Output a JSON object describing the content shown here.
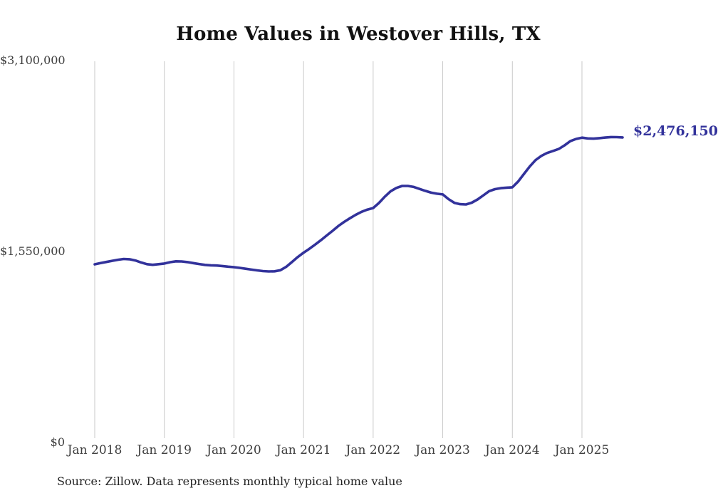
{
  "page": {
    "title": "Home Values in Westover Hills, TX",
    "source_note": "Source: Zillow. Data represents monthly typical home value"
  },
  "chart_data": {
    "type": "line",
    "title": "Home Values in Westover Hills, TX",
    "xlabel": "",
    "ylabel": "",
    "ylim": [
      0,
      3100000
    ],
    "grid": "vertical-yearly",
    "legend_position": "none",
    "line_color": "#32329B",
    "grid_color": "#c9c9c9",
    "label_color": "#3d3d3d",
    "end_label": "$2,476,150",
    "latest_value": 2476150,
    "yticks": [
      {
        "label": "$0",
        "value": 0
      },
      {
        "label": "$1,550,000",
        "value": 1550000
      },
      {
        "label": "$3,100,000",
        "value": 3100000
      }
    ],
    "xticks": [
      {
        "label": "Jan 2018",
        "month_index": 0
      },
      {
        "label": "Jan 2019",
        "month_index": 12
      },
      {
        "label": "Jan 2020",
        "month_index": 24
      },
      {
        "label": "Jan 2021",
        "month_index": 36
      },
      {
        "label": "Jan 2022",
        "month_index": 48
      },
      {
        "label": "Jan 2023",
        "month_index": 60
      },
      {
        "label": "Jan 2024",
        "month_index": 72
      },
      {
        "label": "Jan 2025",
        "month_index": 84
      }
    ],
    "series": [
      {
        "name": "Monthly typical home value",
        "x": [
          "2018-01",
          "2018-02",
          "2018-03",
          "2018-04",
          "2018-05",
          "2018-06",
          "2018-07",
          "2018-08",
          "2018-09",
          "2018-10",
          "2018-11",
          "2018-12",
          "2019-01",
          "2019-02",
          "2019-03",
          "2019-04",
          "2019-05",
          "2019-06",
          "2019-07",
          "2019-08",
          "2019-09",
          "2019-10",
          "2019-11",
          "2019-12",
          "2020-01",
          "2020-02",
          "2020-03",
          "2020-04",
          "2020-05",
          "2020-06",
          "2020-07",
          "2020-08",
          "2020-09",
          "2020-10",
          "2020-11",
          "2020-12",
          "2021-01",
          "2021-02",
          "2021-03",
          "2021-04",
          "2021-05",
          "2021-06",
          "2021-07",
          "2021-08",
          "2021-09",
          "2021-10",
          "2021-11",
          "2021-12",
          "2022-01",
          "2022-02",
          "2022-03",
          "2022-04",
          "2022-05",
          "2022-06",
          "2022-07",
          "2022-08",
          "2022-09",
          "2022-10",
          "2022-11",
          "2022-12",
          "2023-01",
          "2023-02",
          "2023-03",
          "2023-04",
          "2023-05",
          "2023-06",
          "2023-07",
          "2023-08",
          "2023-09",
          "2023-10",
          "2023-11",
          "2023-12",
          "2024-01",
          "2024-02",
          "2024-03",
          "2024-04",
          "2024-05",
          "2024-06",
          "2024-07",
          "2024-08",
          "2024-09",
          "2024-10",
          "2024-11",
          "2024-12",
          "2025-01",
          "2025-02",
          "2025-03",
          "2025-04",
          "2025-05",
          "2025-06",
          "2025-07",
          "2025-08"
        ],
        "values": [
          1446000,
          1456000,
          1465000,
          1474000,
          1483000,
          1489000,
          1487000,
          1477000,
          1461000,
          1447000,
          1442000,
          1447000,
          1452000,
          1463000,
          1470000,
          1469000,
          1464000,
          1456000,
          1448000,
          1441000,
          1438000,
          1436000,
          1432000,
          1427000,
          1423000,
          1417000,
          1410000,
          1403000,
          1397000,
          1391000,
          1388000,
          1389000,
          1398000,
          1425000,
          1465000,
          1505000,
          1540000,
          1572000,
          1606000,
          1642000,
          1680000,
          1718000,
          1757000,
          1790000,
          1820000,
          1848000,
          1872000,
          1890000,
          1903000,
          1944000,
          1994000,
          2038000,
          2066000,
          2082000,
          2082000,
          2074000,
          2058000,
          2042000,
          2028000,
          2019000,
          2013000,
          1975000,
          1945000,
          1934000,
          1932000,
          1946000,
          1972000,
          2006000,
          2040000,
          2056000,
          2064000,
          2068000,
          2071000,
          2118000,
          2180000,
          2240000,
          2292000,
          2326000,
          2350000,
          2366000,
          2382000,
          2412000,
          2446000,
          2464000,
          2474000,
          2468000,
          2466000,
          2470000,
          2475000,
          2479000,
          2478000,
          2476150
        ]
      }
    ]
  }
}
